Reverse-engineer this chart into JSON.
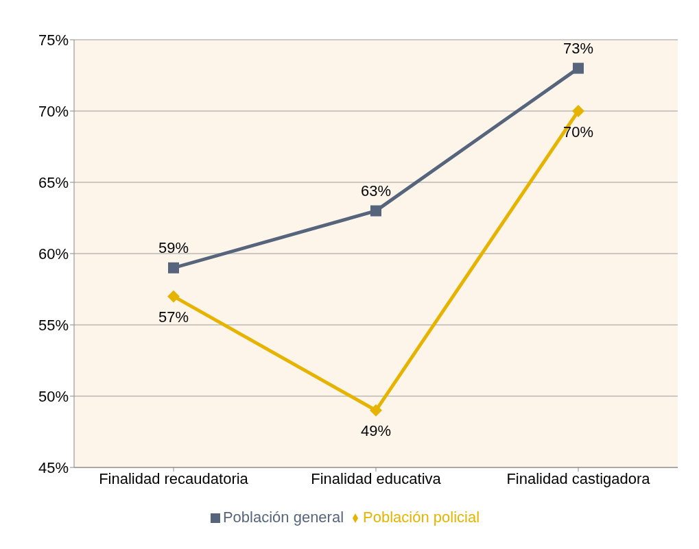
{
  "chart_data": {
    "type": "line",
    "categories": [
      "Finalidad recaudatoria",
      "Finalidad educativa",
      "Finalidad castigadora"
    ],
    "series": [
      {
        "name": "Población policial",
        "color": "#e6b400",
        "marker": "diamond",
        "values": [
          57,
          49,
          70
        ],
        "value_labels": [
          "57%",
          "49%",
          "70%"
        ]
      },
      {
        "name": "Población general",
        "color": "#56657c",
        "marker": "square",
        "values": [
          59,
          63,
          73
        ],
        "value_labels": [
          "59%",
          "63%",
          "73%"
        ]
      }
    ],
    "ylim": [
      45,
      75
    ],
    "yticks": [
      {
        "value": 45,
        "label": "45%"
      },
      {
        "value": 50,
        "label": "50%"
      },
      {
        "value": 55,
        "label": "55%"
      },
      {
        "value": 60,
        "label": "60%"
      },
      {
        "value": 65,
        "label": "65%"
      },
      {
        "value": 70,
        "label": "70%"
      },
      {
        "value": 75,
        "label": "75%"
      }
    ],
    "grid": "y",
    "legend": "bottom"
  }
}
